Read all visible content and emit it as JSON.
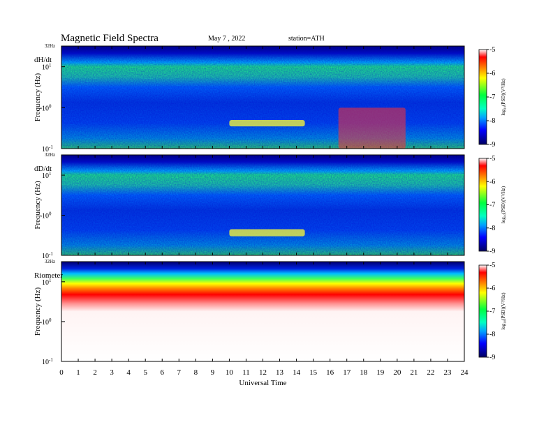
{
  "header": {
    "title": "Magnetic  Field  Spectra",
    "date": "May 7  , 2022",
    "station": "station=ATH"
  },
  "panels": [
    {
      "id": "dhdt",
      "label": "dH/dt"
    },
    {
      "id": "dddt",
      "label": "dD/dt"
    },
    {
      "id": "riometer",
      "label": "Riometer"
    }
  ],
  "axis": {
    "ylabel": "Frequency  (Hz)",
    "top_label": "32Hz",
    "xlabel": "Universal  Time",
    "colorbar_label": "log₁₀(PSD)(V²/Hz)"
  },
  "colors": {
    "scale": [
      "#000060",
      "#0000ff",
      "#00a0ff",
      "#00ff80",
      "#80ff00",
      "#ffff00",
      "#ff8000",
      "#ff0000",
      "#ffffff"
    ]
  },
  "chart_data": {
    "type": "heatmap",
    "x": {
      "label": "Universal  Time",
      "range": [
        0,
        24
      ],
      "ticks": [
        "0",
        "1",
        "2",
        "3",
        "4",
        "5",
        "6",
        "7",
        "8",
        "9",
        "10",
        "11",
        "12",
        "13",
        "14",
        "15",
        "16",
        "17",
        "18",
        "19",
        "20",
        "21",
        "22",
        "23",
        "24"
      ]
    },
    "y": {
      "label": "Frequency  (Hz)",
      "scale": "log",
      "range_hz": [
        0.1,
        32
      ],
      "ticks": [
        {
          "value": 0.1,
          "base": "10",
          "exp": "-1"
        },
        {
          "value": 1,
          "base": "10",
          "exp": "0"
        },
        {
          "value": 10,
          "base": "10",
          "exp": "1"
        }
      ],
      "top_label": "32Hz"
    },
    "colorbar": {
      "label": "log₁₀(PSD)(V²/Hz)",
      "range": [
        -9,
        -5
      ],
      "ticks": [
        "-5",
        "-6",
        "-7",
        "-8",
        "-9"
      ]
    },
    "panels": [
      {
        "name": "dH/dt",
        "features": [
          {
            "feature": "broadband power enhancement",
            "ut": [
              16.5,
              20.5
            ],
            "freq_hz": [
              0.1,
              1.0
            ]
          },
          {
            "feature": "Pc1 band",
            "ut": [
              10.0,
              14.5
            ],
            "freq_hz": [
              0.35,
              0.5
            ]
          }
        ]
      },
      {
        "name": "dD/dt",
        "features": [
          {
            "feature": "Pc1 band",
            "ut": [
              10.0,
              14.5
            ],
            "freq_hz": [
              0.3,
              0.45
            ]
          }
        ]
      },
      {
        "name": "Riometer",
        "features": [
          {
            "feature": "high power band",
            "ut": [
              0,
              24
            ],
            "freq_hz": [
              5,
              10
            ]
          }
        ]
      }
    ]
  }
}
